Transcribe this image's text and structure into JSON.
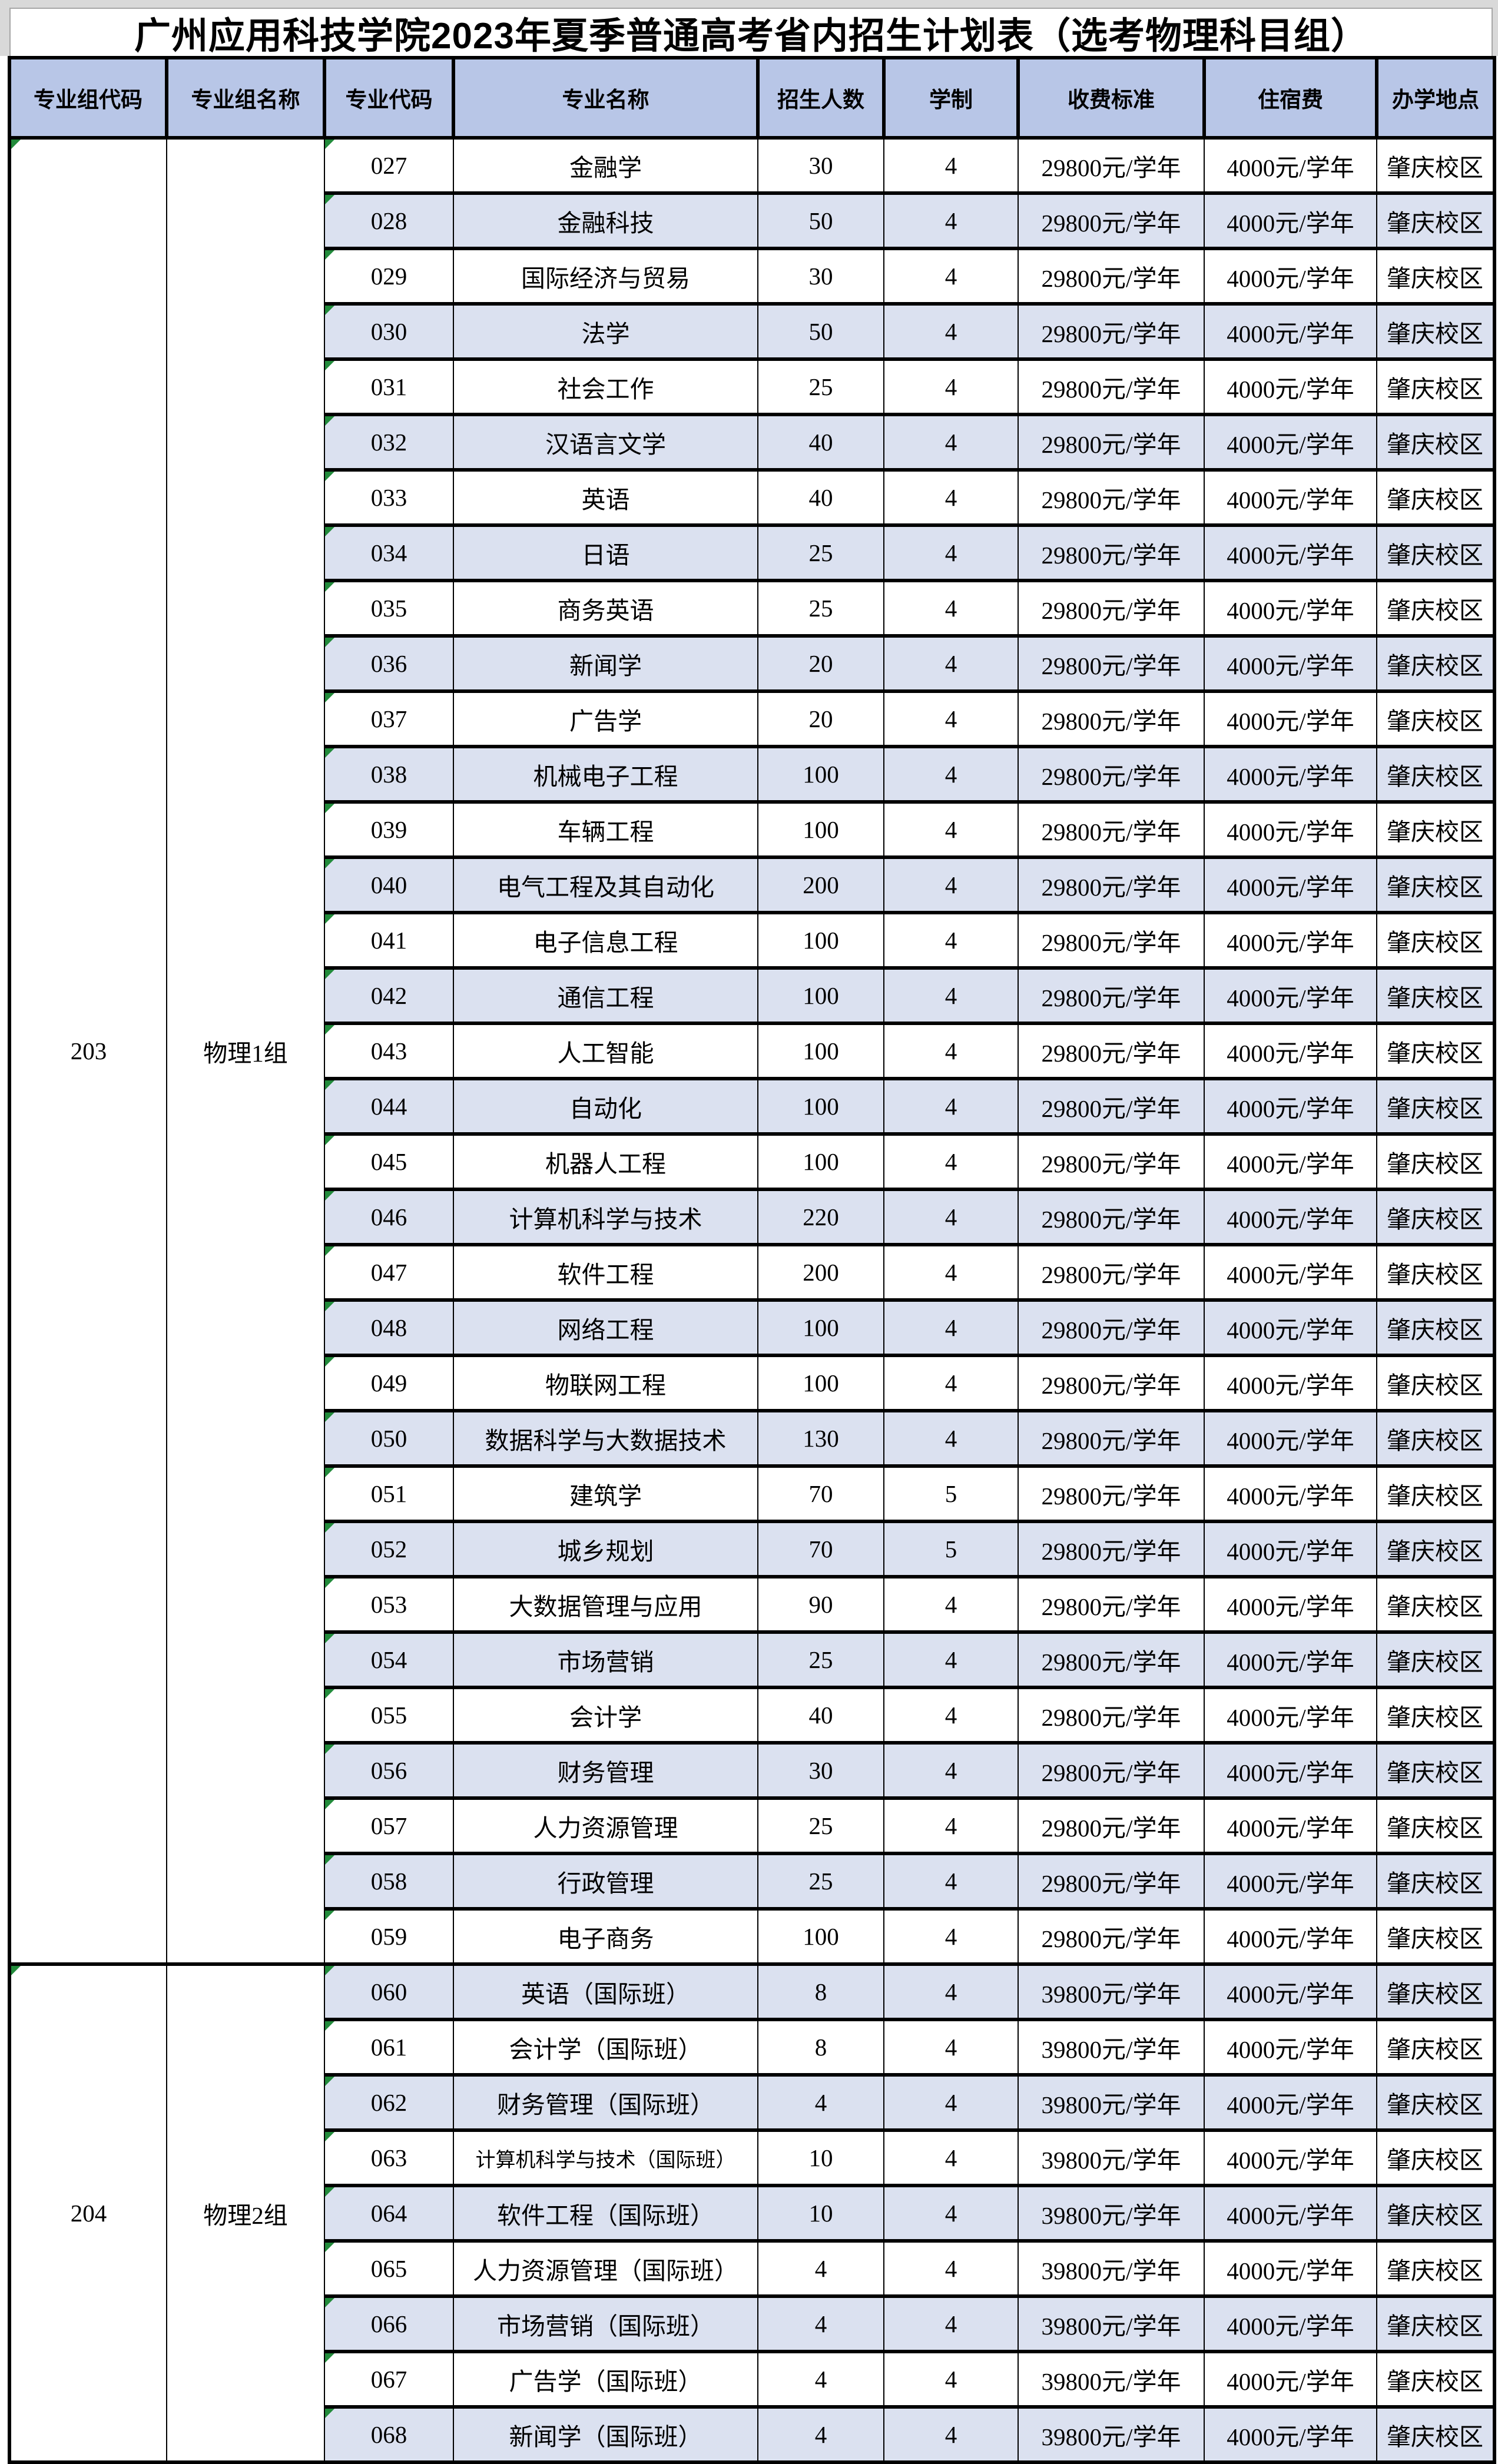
{
  "title": "广州应用科技学院2023年夏季普通高考省内招生计划表（选考物理科目组）",
  "table": {
    "headers": [
      "专业组代码",
      "专业组名称",
      "专业代码",
      "专业名称",
      "招生人数",
      "学制",
      "收费标准",
      "住宿费",
      "办学地点"
    ],
    "groups": [
      {
        "group_code": "203",
        "group_name": "物理1组",
        "majors": [
          {
            "code": "027",
            "name": "金融学",
            "enroll": "30",
            "years": "4",
            "fee": "29800元/学年",
            "accom": "4000元/学年",
            "campus": "肇庆校区"
          },
          {
            "code": "028",
            "name": "金融科技",
            "enroll": "50",
            "years": "4",
            "fee": "29800元/学年",
            "accom": "4000元/学年",
            "campus": "肇庆校区"
          },
          {
            "code": "029",
            "name": "国际经济与贸易",
            "enroll": "30",
            "years": "4",
            "fee": "29800元/学年",
            "accom": "4000元/学年",
            "campus": "肇庆校区"
          },
          {
            "code": "030",
            "name": "法学",
            "enroll": "50",
            "years": "4",
            "fee": "29800元/学年",
            "accom": "4000元/学年",
            "campus": "肇庆校区"
          },
          {
            "code": "031",
            "name": "社会工作",
            "enroll": "25",
            "years": "4",
            "fee": "29800元/学年",
            "accom": "4000元/学年",
            "campus": "肇庆校区"
          },
          {
            "code": "032",
            "name": "汉语言文学",
            "enroll": "40",
            "years": "4",
            "fee": "29800元/学年",
            "accom": "4000元/学年",
            "campus": "肇庆校区"
          },
          {
            "code": "033",
            "name": "英语",
            "enroll": "40",
            "years": "4",
            "fee": "29800元/学年",
            "accom": "4000元/学年",
            "campus": "肇庆校区"
          },
          {
            "code": "034",
            "name": "日语",
            "enroll": "25",
            "years": "4",
            "fee": "29800元/学年",
            "accom": "4000元/学年",
            "campus": "肇庆校区"
          },
          {
            "code": "035",
            "name": "商务英语",
            "enroll": "25",
            "years": "4",
            "fee": "29800元/学年",
            "accom": "4000元/学年",
            "campus": "肇庆校区"
          },
          {
            "code": "036",
            "name": "新闻学",
            "enroll": "20",
            "years": "4",
            "fee": "29800元/学年",
            "accom": "4000元/学年",
            "campus": "肇庆校区"
          },
          {
            "code": "037",
            "name": "广告学",
            "enroll": "20",
            "years": "4",
            "fee": "29800元/学年",
            "accom": "4000元/学年",
            "campus": "肇庆校区"
          },
          {
            "code": "038",
            "name": "机械电子工程",
            "enroll": "100",
            "years": "4",
            "fee": "29800元/学年",
            "accom": "4000元/学年",
            "campus": "肇庆校区"
          },
          {
            "code": "039",
            "name": "车辆工程",
            "enroll": "100",
            "years": "4",
            "fee": "29800元/学年",
            "accom": "4000元/学年",
            "campus": "肇庆校区"
          },
          {
            "code": "040",
            "name": "电气工程及其自动化",
            "enroll": "200",
            "years": "4",
            "fee": "29800元/学年",
            "accom": "4000元/学年",
            "campus": "肇庆校区"
          },
          {
            "code": "041",
            "name": "电子信息工程",
            "enroll": "100",
            "years": "4",
            "fee": "29800元/学年",
            "accom": "4000元/学年",
            "campus": "肇庆校区"
          },
          {
            "code": "042",
            "name": "通信工程",
            "enroll": "100",
            "years": "4",
            "fee": "29800元/学年",
            "accom": "4000元/学年",
            "campus": "肇庆校区"
          },
          {
            "code": "043",
            "name": "人工智能",
            "enroll": "100",
            "years": "4",
            "fee": "29800元/学年",
            "accom": "4000元/学年",
            "campus": "肇庆校区"
          },
          {
            "code": "044",
            "name": "自动化",
            "enroll": "100",
            "years": "4",
            "fee": "29800元/学年",
            "accom": "4000元/学年",
            "campus": "肇庆校区"
          },
          {
            "code": "045",
            "name": "机器人工程",
            "enroll": "100",
            "years": "4",
            "fee": "29800元/学年",
            "accom": "4000元/学年",
            "campus": "肇庆校区"
          },
          {
            "code": "046",
            "name": "计算机科学与技术",
            "enroll": "220",
            "years": "4",
            "fee": "29800元/学年",
            "accom": "4000元/学年",
            "campus": "肇庆校区"
          },
          {
            "code": "047",
            "name": "软件工程",
            "enroll": "200",
            "years": "4",
            "fee": "29800元/学年",
            "accom": "4000元/学年",
            "campus": "肇庆校区"
          },
          {
            "code": "048",
            "name": "网络工程",
            "enroll": "100",
            "years": "4",
            "fee": "29800元/学年",
            "accom": "4000元/学年",
            "campus": "肇庆校区"
          },
          {
            "code": "049",
            "name": "物联网工程",
            "enroll": "100",
            "years": "4",
            "fee": "29800元/学年",
            "accom": "4000元/学年",
            "campus": "肇庆校区"
          },
          {
            "code": "050",
            "name": "数据科学与大数据技术",
            "enroll": "130",
            "years": "4",
            "fee": "29800元/学年",
            "accom": "4000元/学年",
            "campus": "肇庆校区"
          },
          {
            "code": "051",
            "name": "建筑学",
            "enroll": "70",
            "years": "5",
            "fee": "29800元/学年",
            "accom": "4000元/学年",
            "campus": "肇庆校区"
          },
          {
            "code": "052",
            "name": "城乡规划",
            "enroll": "70",
            "years": "5",
            "fee": "29800元/学年",
            "accom": "4000元/学年",
            "campus": "肇庆校区"
          },
          {
            "code": "053",
            "name": "大数据管理与应用",
            "enroll": "90",
            "years": "4",
            "fee": "29800元/学年",
            "accom": "4000元/学年",
            "campus": "肇庆校区"
          },
          {
            "code": "054",
            "name": "市场营销",
            "enroll": "25",
            "years": "4",
            "fee": "29800元/学年",
            "accom": "4000元/学年",
            "campus": "肇庆校区"
          },
          {
            "code": "055",
            "name": "会计学",
            "enroll": "40",
            "years": "4",
            "fee": "29800元/学年",
            "accom": "4000元/学年",
            "campus": "肇庆校区"
          },
          {
            "code": "056",
            "name": "财务管理",
            "enroll": "30",
            "years": "4",
            "fee": "29800元/学年",
            "accom": "4000元/学年",
            "campus": "肇庆校区"
          },
          {
            "code": "057",
            "name": "人力资源管理",
            "enroll": "25",
            "years": "4",
            "fee": "29800元/学年",
            "accom": "4000元/学年",
            "campus": "肇庆校区"
          },
          {
            "code": "058",
            "name": "行政管理",
            "enroll": "25",
            "years": "4",
            "fee": "29800元/学年",
            "accom": "4000元/学年",
            "campus": "肇庆校区"
          },
          {
            "code": "059",
            "name": "电子商务",
            "enroll": "100",
            "years": "4",
            "fee": "29800元/学年",
            "accom": "4000元/学年",
            "campus": "肇庆校区"
          }
        ]
      },
      {
        "group_code": "204",
        "group_name": "物理2组",
        "majors": [
          {
            "code": "060",
            "name": "英语（国际班）",
            "enroll": "8",
            "years": "4",
            "fee": "39800元/学年",
            "accom": "4000元/学年",
            "campus": "肇庆校区"
          },
          {
            "code": "061",
            "name": "会计学（国际班）",
            "enroll": "8",
            "years": "4",
            "fee": "39800元/学年",
            "accom": "4000元/学年",
            "campus": "肇庆校区"
          },
          {
            "code": "062",
            "name": "财务管理（国际班）",
            "enroll": "4",
            "years": "4",
            "fee": "39800元/学年",
            "accom": "4000元/学年",
            "campus": "肇庆校区"
          },
          {
            "code": "063",
            "name": "计算机科学与技术（国际班）",
            "enroll": "10",
            "years": "4",
            "fee": "39800元/学年",
            "accom": "4000元/学年",
            "campus": "肇庆校区"
          },
          {
            "code": "064",
            "name": "软件工程（国际班）",
            "enroll": "10",
            "years": "4",
            "fee": "39800元/学年",
            "accom": "4000元/学年",
            "campus": "肇庆校区"
          },
          {
            "code": "065",
            "name": "人力资源管理（国际班）",
            "enroll": "4",
            "years": "4",
            "fee": "39800元/学年",
            "accom": "4000元/学年",
            "campus": "肇庆校区"
          },
          {
            "code": "066",
            "name": "市场营销（国际班）",
            "enroll": "4",
            "years": "4",
            "fee": "39800元/学年",
            "accom": "4000元/学年",
            "campus": "肇庆校区"
          },
          {
            "code": "067",
            "name": "广告学（国际班）",
            "enroll": "4",
            "years": "4",
            "fee": "39800元/学年",
            "accom": "4000元/学年",
            "campus": "肇庆校区"
          },
          {
            "code": "068",
            "name": "新闻学（国际班）",
            "enroll": "4",
            "years": "4",
            "fee": "39800元/学年",
            "accom": "4000元/学年",
            "campus": "肇庆校区"
          }
        ]
      }
    ]
  },
  "colors": {
    "header_bg": "#b8c6e7",
    "stripe_bg": "#dbe1f0",
    "flag_green": "#228b3b",
    "outer_gray": "#d9d9d9",
    "title_border": "#a6a6a6",
    "line_black": "#000000"
  }
}
